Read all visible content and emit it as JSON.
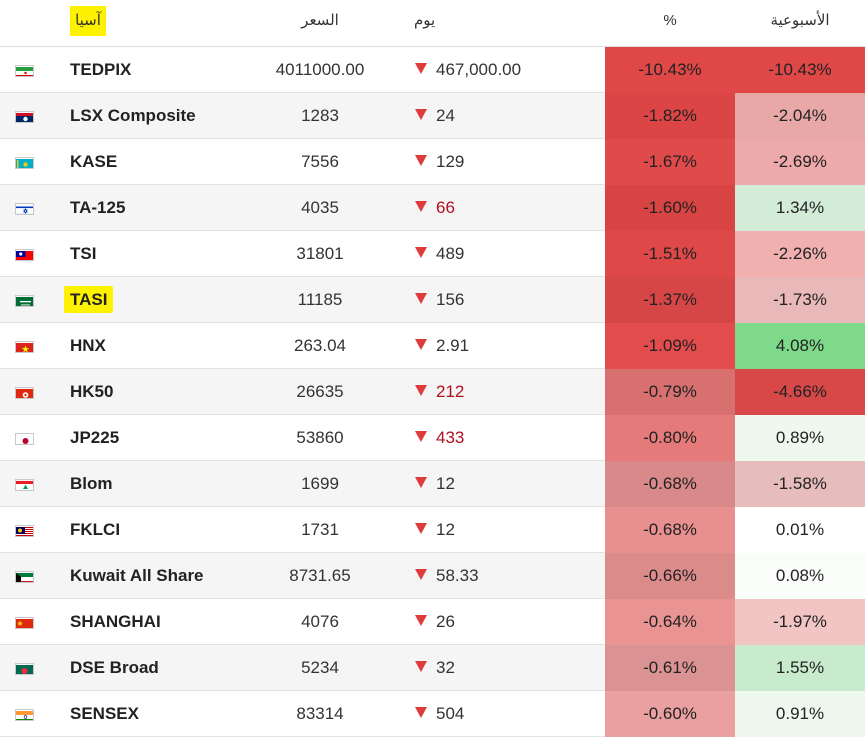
{
  "header": {
    "region": "آسيا",
    "price": "السعر",
    "day": "يوم",
    "pct": "%",
    "week": "الأسبوعية"
  },
  "colors": {
    "highlight": "#fff200",
    "down_arrow": "#e03b3b"
  },
  "rows": [
    {
      "name": "TEDPIX",
      "price": "4011000.00",
      "change": "467,000.00",
      "pct": "-10.43%",
      "week": "-10.43%",
      "flag": "ir-flag-icon",
      "pct_bg": "#e04848",
      "week_bg": "#e04848",
      "dark": false,
      "highlight": false
    },
    {
      "name": "LSX Composite",
      "price": "1283",
      "change": "24",
      "pct": "-1.82%",
      "week": "-2.04%",
      "flag": "la-flag-icon",
      "pct_bg": "#dc4545",
      "week_bg": "#e8a8a8",
      "dark": false,
      "highlight": false
    },
    {
      "name": "KASE",
      "price": "7556",
      "change": "129",
      "pct": "-1.67%",
      "week": "-2.69%",
      "flag": "kz-flag-icon",
      "pct_bg": "#e04a4a",
      "week_bg": "#eeaaaa",
      "dark": false,
      "highlight": false
    },
    {
      "name": "TA-125",
      "price": "4035",
      "change": "66",
      "pct": "-1.60%",
      "week": "1.34%",
      "flag": "il-flag-icon",
      "pct_bg": "#d84444",
      "week_bg": "#d3ecd8",
      "dark": true,
      "highlight": false
    },
    {
      "name": "TSI",
      "price": "31801",
      "change": "489",
      "pct": "-1.51%",
      "week": "-2.26%",
      "flag": "tw-flag-icon",
      "pct_bg": "#de4848",
      "week_bg": "#f1b0b0",
      "dark": false,
      "highlight": false
    },
    {
      "name": "TASI",
      "price": "11185",
      "change": "156",
      "pct": "-1.37%",
      "week": "-1.73%",
      "flag": "sa-flag-icon",
      "pct_bg": "#d74646",
      "week_bg": "#e9b8b8",
      "dark": false,
      "highlight": true
    },
    {
      "name": "HNX",
      "price": "263.04",
      "change": "2.91",
      "pct": "-1.09%",
      "week": "4.08%",
      "flag": "vn-flag-icon",
      "pct_bg": "#e34c4c",
      "week_bg": "#7fd98a",
      "dark": false,
      "highlight": false
    },
    {
      "name": "HK50",
      "price": "26635",
      "change": "212",
      "pct": "-0.79%",
      "week": "-4.66%",
      "flag": "hk-flag-icon",
      "pct_bg": "#d87070",
      "week_bg": "#d94848",
      "dark": true,
      "highlight": false
    },
    {
      "name": "JP225",
      "price": "53860",
      "change": "433",
      "pct": "-0.80%",
      "week": "0.89%",
      "flag": "jp-flag-icon",
      "pct_bg": "#e57a7a",
      "week_bg": "#eef8ef",
      "dark": true,
      "highlight": false
    },
    {
      "name": "Blom",
      "price": "1699",
      "change": "12",
      "pct": "-0.68%",
      "week": "-1.58%",
      "flag": "lb-flag-icon",
      "pct_bg": "#d98989",
      "week_bg": "#e6bcbc",
      "dark": false,
      "highlight": false
    },
    {
      "name": "FKLCI",
      "price": "1731",
      "change": "12",
      "pct": "-0.68%",
      "week": "0.01%",
      "flag": "my-flag-icon",
      "pct_bg": "#e88f8f",
      "week_bg": "#ffffff",
      "dark": false,
      "highlight": false
    },
    {
      "name": "Kuwait All Share",
      "price": "8731.65",
      "change": "58.33",
      "pct": "-0.66%",
      "week": "0.08%",
      "flag": "kw-flag-icon",
      "pct_bg": "#dc8b8b",
      "week_bg": "#f9fcf9",
      "dark": false,
      "highlight": false
    },
    {
      "name": "SHANGHAI",
      "price": "4076",
      "change": "26",
      "pct": "-0.64%",
      "week": "-1.97%",
      "flag": "cn-flag-icon",
      "pct_bg": "#e99393",
      "week_bg": "#f2c4c4",
      "dark": false,
      "highlight": false
    },
    {
      "name": "DSE Broad",
      "price": "5234",
      "change": "32",
      "pct": "-0.61%",
      "week": "1.55%",
      "flag": "bd-flag-icon",
      "pct_bg": "#db9292",
      "week_bg": "#c9ebcd",
      "dark": false,
      "highlight": false
    },
    {
      "name": "SENSEX",
      "price": "83314",
      "change": "504",
      "pct": "-0.60%",
      "week": "0.91%",
      "flag": "in-flag-icon",
      "pct_bg": "#eaa0a0",
      "week_bg": "#eef8ef",
      "dark": false,
      "highlight": false
    }
  ]
}
